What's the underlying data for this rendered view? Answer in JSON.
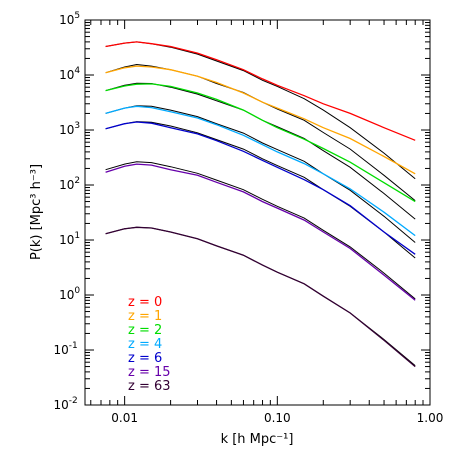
{
  "chart_data": {
    "type": "line",
    "title": "",
    "xlabel": "k  [h Mpc⁻¹]",
    "ylabel": "P(k)  [Mpc³ h⁻³]",
    "xscale": "log",
    "yscale": "log",
    "xlim": [
      0.0055,
      1.0
    ],
    "ylim": [
      0.01,
      100000
    ],
    "x_ticks": [
      {
        "value": 0.01,
        "label": "0.01"
      },
      {
        "value": 0.1,
        "label": "0.10"
      },
      {
        "value": 1.0,
        "label": "1.00"
      }
    ],
    "y_ticks": [
      {
        "value": 0.01,
        "base": "10",
        "exp": "-2"
      },
      {
        "value": 0.1,
        "base": "10",
        "exp": "-1"
      },
      {
        "value": 1,
        "base": "10",
        "exp": "0"
      },
      {
        "value": 10,
        "base": "10",
        "exp": "1"
      },
      {
        "value": 100,
        "base": "10",
        "exp": "2"
      },
      {
        "value": 1000,
        "base": "10",
        "exp": "3"
      },
      {
        "value": 10000,
        "base": "10",
        "exp": "4"
      },
      {
        "value": 100000,
        "base": "10",
        "exp": "5"
      }
    ],
    "legend_position": "lower-left",
    "series": [
      {
        "name": "z = 0",
        "color": "#ff0000",
        "sim_x": [
          0.0075,
          0.01,
          0.012,
          0.015,
          0.02,
          0.03,
          0.04,
          0.06,
          0.08,
          0.1,
          0.15,
          0.2,
          0.3,
          0.5,
          0.8
        ],
        "sim_y": [
          33000,
          38000,
          40000,
          37000,
          33000,
          25000,
          19000,
          12500,
          8500,
          6500,
          4200,
          3000,
          2000,
          1100,
          650
        ],
        "linear_y": [
          33000,
          38000,
          40000,
          37000,
          32000,
          24000,
          18000,
          12000,
          8000,
          6200,
          3700,
          2300,
          1100,
          380,
          130
        ]
      },
      {
        "name": "z = 1",
        "color": "#ffa500",
        "sim_x": [
          0.0075,
          0.01,
          0.012,
          0.015,
          0.02,
          0.03,
          0.04,
          0.06,
          0.08,
          0.1,
          0.15,
          0.2,
          0.3,
          0.5,
          0.8
        ],
        "sim_y": [
          11000,
          13500,
          14500,
          14000,
          12500,
          9500,
          7300,
          4700,
          3200,
          2500,
          1600,
          1100,
          700,
          330,
          160
        ],
        "linear_y": [
          11000,
          14000,
          15500,
          14500,
          12500,
          9500,
          7000,
          4800,
          3200,
          2400,
          1500,
          900,
          450,
          150,
          52
        ]
      },
      {
        "name": "z = 2",
        "color": "#00dd00",
        "sim_x": [
          0.0075,
          0.01,
          0.012,
          0.015,
          0.02,
          0.03,
          0.04,
          0.06,
          0.08,
          0.1,
          0.15,
          0.2,
          0.3,
          0.5,
          0.8
        ],
        "sim_y": [
          5200,
          6300,
          6800,
          6900,
          6200,
          4700,
          3600,
          2300,
          1500,
          1100,
          680,
          460,
          260,
          110,
          50
        ],
        "linear_y": [
          5200,
          6500,
          7100,
          7000,
          6000,
          4500,
          3400,
          2300,
          1500,
          1150,
          700,
          420,
          210,
          70,
          24
        ]
      },
      {
        "name": "z = 4",
        "color": "#00aaff",
        "sim_x": [
          0.0075,
          0.01,
          0.012,
          0.015,
          0.02,
          0.03,
          0.04,
          0.06,
          0.08,
          0.1,
          0.15,
          0.2,
          0.3,
          0.5,
          0.8
        ],
        "sim_y": [
          2000,
          2500,
          2700,
          2550,
          2150,
          1650,
          1250,
          800,
          540,
          400,
          245,
          160,
          85,
          32,
          12
        ],
        "linear_y": [
          2000,
          2500,
          2750,
          2700,
          2300,
          1750,
          1300,
          880,
          580,
          440,
          270,
          160,
          80,
          27,
          9
        ]
      },
      {
        "name": "z = 6",
        "color": "#0000cc",
        "sim_x": [
          0.0075,
          0.01,
          0.012,
          0.015,
          0.02,
          0.03,
          0.04,
          0.06,
          0.08,
          0.1,
          0.15,
          0.2,
          0.3,
          0.5,
          0.8
        ],
        "sim_y": [
          1050,
          1300,
          1400,
          1330,
          1100,
          850,
          640,
          410,
          280,
          210,
          125,
          82,
          42,
          14,
          5.5
        ],
        "linear_y": [
          1050,
          1300,
          1420,
          1380,
          1180,
          890,
          670,
          450,
          300,
          225,
          138,
          82,
          41,
          14,
          4.7
        ]
      },
      {
        "name": "z = 15",
        "color": "#6600aa",
        "sim_x": [
          0.0075,
          0.01,
          0.012,
          0.015,
          0.02,
          0.03,
          0.04,
          0.06,
          0.08,
          0.1,
          0.15,
          0.2,
          0.3,
          0.5,
          0.8
        ],
        "sim_y": [
          170,
          220,
          240,
          230,
          190,
          150,
          112,
          75,
          50,
          38,
          23,
          14,
          7,
          2.3,
          0.8
        ],
        "linear_y": [
          190,
          240,
          265,
          255,
          215,
          163,
          123,
          82,
          55,
          41,
          25,
          15,
          7.5,
          2.5,
          0.85
        ]
      },
      {
        "name": "z = 63",
        "color": "#330033",
        "sim_x": [
          0.0075,
          0.01,
          0.012,
          0.015,
          0.02,
          0.03,
          0.04,
          0.06,
          0.08,
          0.1,
          0.15,
          0.2,
          0.3,
          0.5,
          0.8
        ],
        "sim_y": [
          13,
          16,
          17,
          16.5,
          14,
          10.5,
          7.8,
          5.3,
          3.5,
          2.6,
          1.6,
          0.95,
          0.47,
          0.15,
          0.05
        ],
        "linear_y": [
          13,
          16,
          17,
          16.5,
          14,
          10.5,
          7.8,
          5.3,
          3.5,
          2.6,
          1.6,
          0.95,
          0.47,
          0.155,
          0.052
        ]
      }
    ]
  }
}
